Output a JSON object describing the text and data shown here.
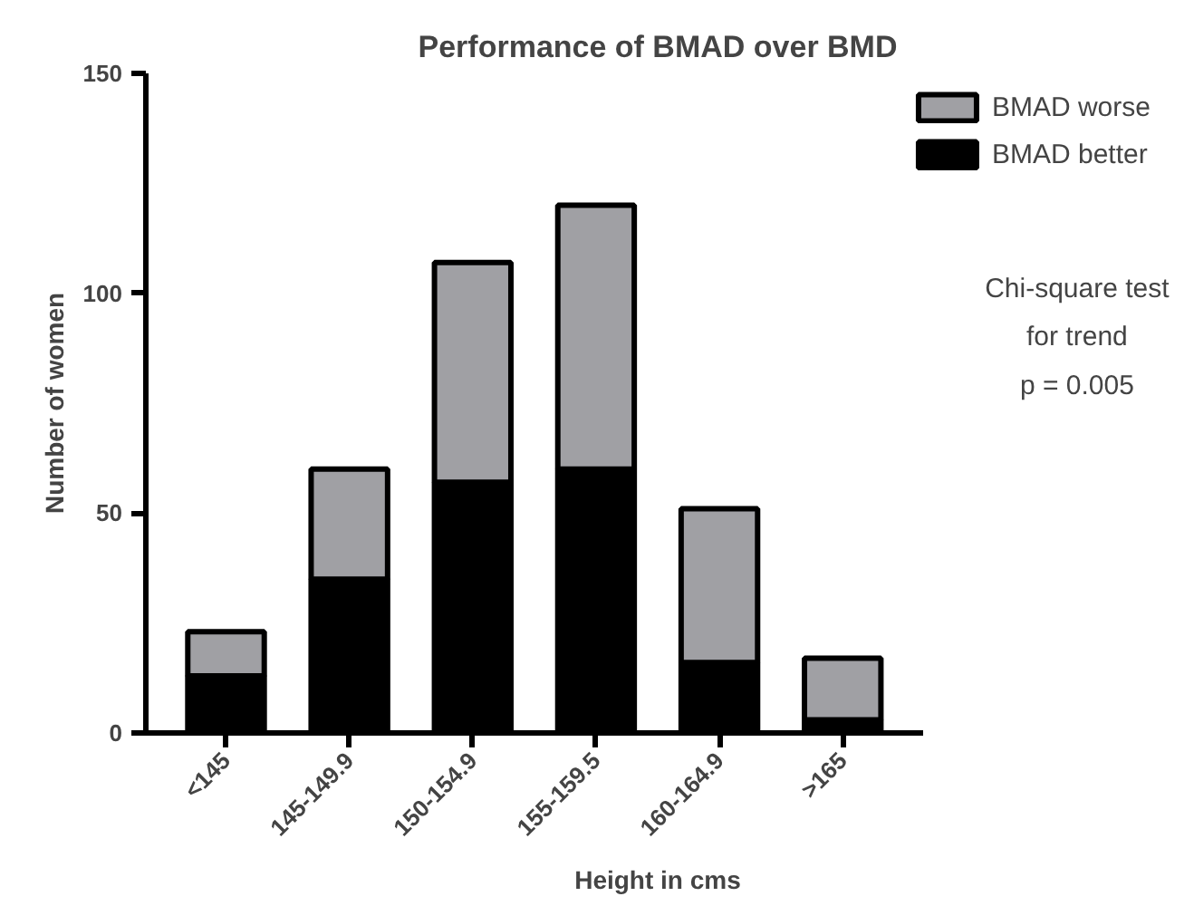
{
  "chart_data": {
    "type": "bar",
    "stacked": true,
    "title": "Performance of BMAD over BMD",
    "xlabel": "Height in cms",
    "ylabel": "Number of women",
    "categories": [
      "<145",
      "145-149.9",
      "150-154.9",
      "155-159.5",
      "160-164.9",
      ">165"
    ],
    "series": [
      {
        "name": "BMAD better",
        "color": "#000000",
        "values": [
          13,
          35,
          57,
          60,
          16,
          3
        ]
      },
      {
        "name": "BMAD worse",
        "color": "#a0a0a4",
        "values": [
          10,
          25,
          50,
          60,
          35,
          14
        ]
      }
    ],
    "ylim": [
      0,
      150
    ],
    "yticks": [
      0,
      50,
      100,
      150
    ],
    "grid": false,
    "legend": "top right",
    "annotations": [
      "Chi-square test\nfor trend\np = 0.005"
    ]
  }
}
